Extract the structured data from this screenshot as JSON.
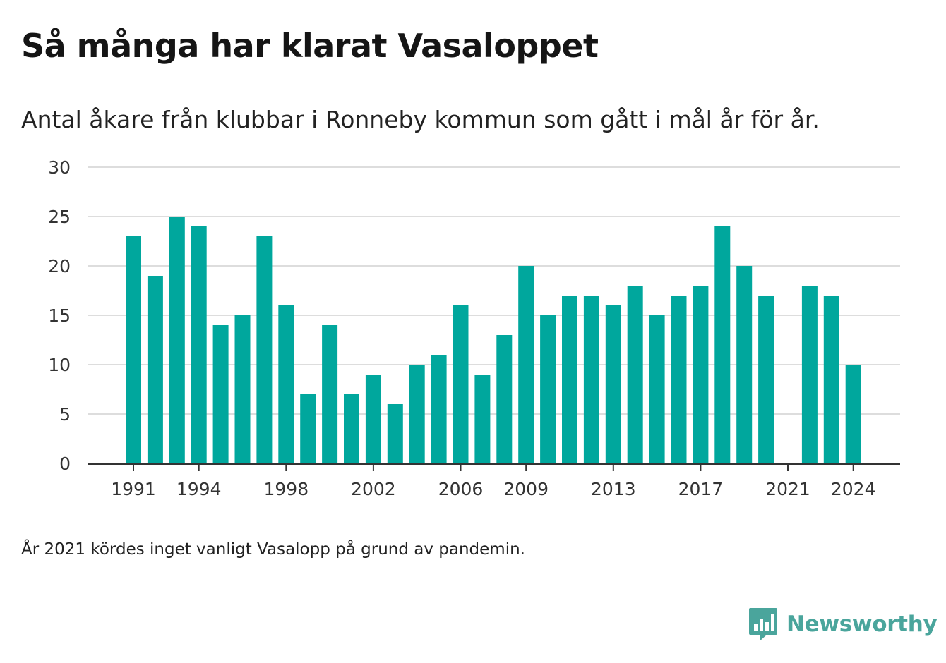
{
  "colors": {
    "bar": "#00a79d",
    "grid": "#dddddd",
    "axis": "#333333",
    "brand": "#4aa59c"
  },
  "chart_data": {
    "type": "bar",
    "title": "Så många har klarat Vasaloppet",
    "subtitle": "Antal åkare från klubbar i Ronneby kommun som gått i mål år för år.",
    "note": "År 2021 kördes inget vanligt Vasalopp på grund av pandemin.",
    "xlabel": "",
    "ylabel": "",
    "ylim": [
      0,
      30
    ],
    "yticks": [
      0,
      5,
      10,
      15,
      20,
      25,
      30
    ],
    "xticks": [
      1991,
      1994,
      1998,
      2002,
      2006,
      2009,
      2013,
      2017,
      2021,
      2024
    ],
    "grid": true,
    "categories": [
      1991,
      1992,
      1993,
      1994,
      1995,
      1996,
      1997,
      1998,
      1999,
      2000,
      2001,
      2002,
      2003,
      2004,
      2005,
      2006,
      2007,
      2008,
      2009,
      2010,
      2011,
      2012,
      2013,
      2014,
      2015,
      2016,
      2017,
      2018,
      2019,
      2020,
      2021,
      2022,
      2023,
      2024
    ],
    "values": [
      23,
      19,
      25,
      24,
      14,
      15,
      23,
      16,
      7,
      14,
      7,
      9,
      6,
      10,
      11,
      16,
      9,
      13,
      20,
      15,
      17,
      17,
      16,
      18,
      15,
      17,
      18,
      24,
      20,
      17,
      null,
      18,
      17,
      10
    ]
  },
  "brand": {
    "name": "Newsworthy",
    "icon": "newsworthy-logo-icon"
  }
}
